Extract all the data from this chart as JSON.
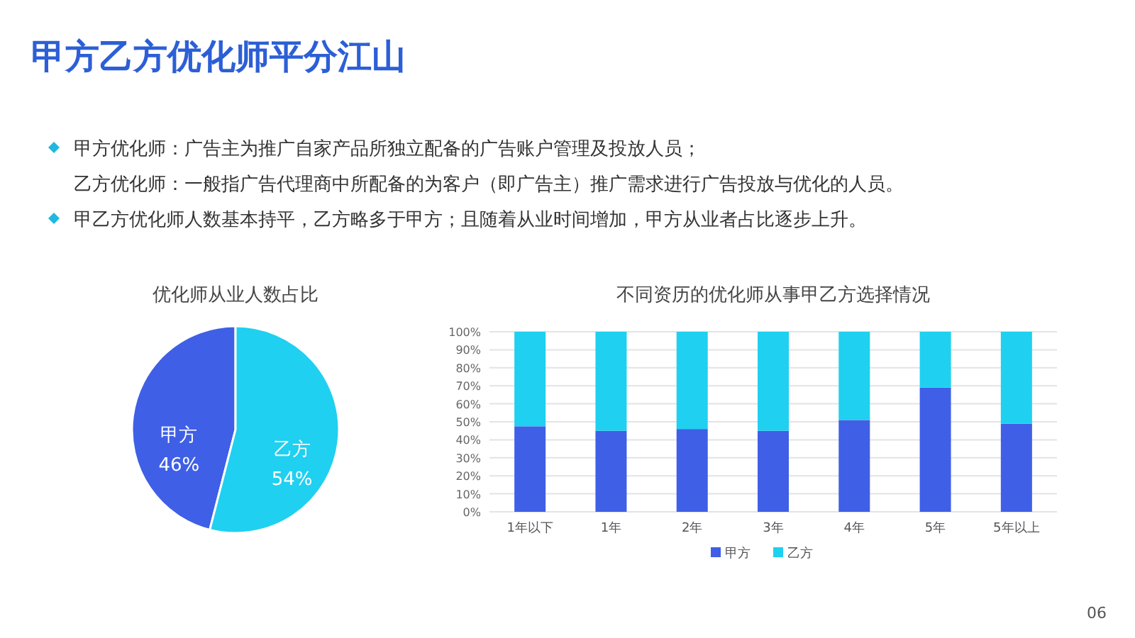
{
  "chart_data": [
    {
      "type": "other",
      "title": "甲方乙方优化师平分江山",
      "annotations": [
        "甲方优化师：广告主为推广自家产品所独立配备的广告账户管理及投放人员；",
        "乙方优化师：一般指广告代理商中所配备的为客户（即广告主）推广需求进行广告投放与优化的人员。",
        "甲乙方优化师人数基本持平，乙方略多于甲方；且随着从业时间增加，甲方从业者占比逐步上升。",
        "06"
      ]
    },
    {
      "type": "pie",
      "title": "优化师从业人数占比",
      "categories": [
        "甲方",
        "乙方"
      ],
      "values": [
        46,
        54
      ],
      "colors": [
        "#3f5fe6",
        "#1fd0f0"
      ],
      "value_labels": [
        "46%",
        "54%"
      ]
    },
    {
      "type": "bar",
      "title": "不同资历的优化师从事甲乙方选择情况",
      "stacked": true,
      "categories": [
        "1年以下",
        "1年",
        "2年",
        "3年",
        "4年",
        "5年",
        "5年以上"
      ],
      "series": [
        {
          "name": "甲方",
          "color": "#3f5fe6",
          "values": [
            47.5,
            45,
            46,
            45,
            51,
            69,
            49
          ]
        },
        {
          "name": "乙方",
          "color": "#1fd0f0",
          "values": [
            52.5,
            55,
            54,
            55,
            49,
            31,
            51
          ]
        }
      ],
      "ylim": [
        0,
        100
      ],
      "yticks": [
        {
          "value": 0,
          "label": "0%"
        },
        {
          "value": 10,
          "label": "10%"
        },
        {
          "value": 20,
          "label": "20%"
        },
        {
          "value": 30,
          "label": "30%"
        },
        {
          "value": 40,
          "label": "40%"
        },
        {
          "value": 50,
          "label": "50%"
        },
        {
          "value": 60,
          "label": "60%"
        },
        {
          "value": 70,
          "label": "70%"
        },
        {
          "value": 80,
          "label": "80%"
        },
        {
          "value": 90,
          "label": "90%"
        },
        {
          "value": 100,
          "label": "100%"
        }
      ],
      "grid": "y",
      "legend": "bottom"
    }
  ]
}
